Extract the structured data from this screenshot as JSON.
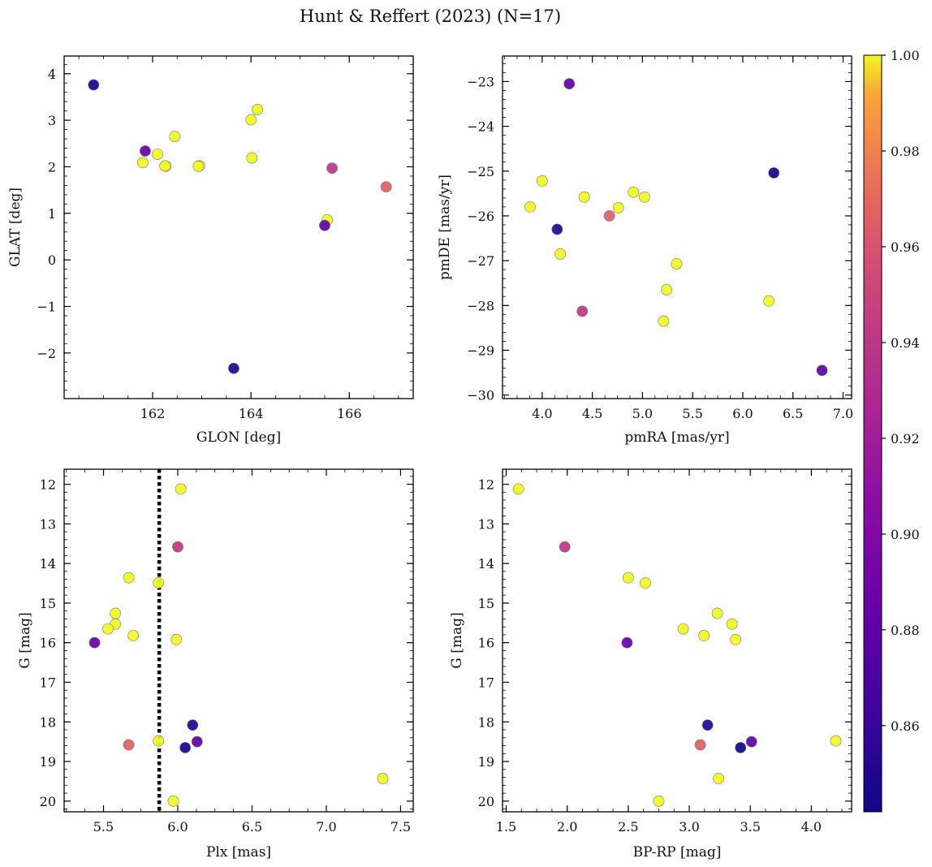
{
  "chart_data": {
    "title": "Hunt & Reffert (2023) (N=17)",
    "colorbar": {
      "colormap": "plasma",
      "range": [
        0.842,
        1.0
      ],
      "ticks": [
        0.86,
        0.88,
        0.9,
        0.92,
        0.94,
        0.96,
        0.98,
        1.0
      ],
      "tick_labels": [
        "0.86",
        "0.88",
        "0.90",
        "0.92",
        "0.94",
        "0.96",
        "0.98",
        "1.00"
      ]
    },
    "members": [
      {
        "glon": 160.8,
        "glat": 3.76,
        "pmra": 6.31,
        "pmde": -25.04,
        "plx": 6.05,
        "g": 18.65,
        "bprp": 3.42,
        "prob": 0.845
      },
      {
        "glon": 163.65,
        "glat": -2.33,
        "pmra": 4.15,
        "pmde": -26.3,
        "plx": 6.1,
        "g": 18.08,
        "bprp": 3.15,
        "prob": 0.85
      },
      {
        "glon": 161.85,
        "glat": 2.34,
        "pmra": 4.27,
        "pmde": -23.05,
        "plx": 5.44,
        "g": 16.0,
        "bprp": 2.49,
        "prob": 0.885
      },
      {
        "glon": 165.5,
        "glat": 0.74,
        "pmra": 6.79,
        "pmde": -29.45,
        "plx": 6.13,
        "g": 18.5,
        "bprp": 3.51,
        "prob": 0.88
      },
      {
        "glon": 165.65,
        "glat": 1.97,
        "pmra": 4.4,
        "pmde": -28.13,
        "plx": 6.0,
        "g": 13.58,
        "bprp": 1.98,
        "prob": 0.94
      },
      {
        "glon": 166.75,
        "glat": 1.57,
        "pmra": 4.67,
        "pmde": -26.0,
        "plx": 5.67,
        "g": 18.58,
        "bprp": 3.09,
        "prob": 0.965
      },
      {
        "glon": 161.8,
        "glat": 2.09,
        "pmra": 3.88,
        "pmde": -25.8,
        "plx": 6.02,
        "g": 12.12,
        "bprp": 1.6,
        "prob": 1.0
      },
      {
        "glon": 162.1,
        "glat": 2.27,
        "pmra": 4.0,
        "pmde": -25.22,
        "plx": 5.87,
        "g": 14.49,
        "bprp": 2.64,
        "prob": 1.0
      },
      {
        "glon": 162.27,
        "glat": 2.01,
        "pmra": 4.18,
        "pmde": -26.85,
        "plx": 5.67,
        "g": 14.36,
        "bprp": 2.5,
        "prob": 1.0
      },
      {
        "glon": 162.25,
        "glat": 2.02,
        "pmra": 4.42,
        "pmde": -25.58,
        "plx": 5.58,
        "g": 15.26,
        "bprp": 3.23,
        "prob": 1.0
      },
      {
        "glon": 162.45,
        "glat": 2.65,
        "pmra": 4.76,
        "pmde": -25.82,
        "plx": 5.58,
        "g": 15.53,
        "bprp": 3.35,
        "prob": 1.0
      },
      {
        "glon": 162.95,
        "glat": 2.02,
        "pmra": 4.91,
        "pmde": -25.47,
        "plx": 5.53,
        "g": 15.65,
        "bprp": 2.95,
        "prob": 1.0
      },
      {
        "glon": 162.93,
        "glat": 2.01,
        "pmra": 5.02,
        "pmde": -25.58,
        "plx": 5.7,
        "g": 15.82,
        "bprp": 3.12,
        "prob": 1.0
      },
      {
        "glon": 164.0,
        "glat": 3.01,
        "pmra": 5.21,
        "pmde": -28.35,
        "plx": 5.99,
        "g": 15.92,
        "bprp": 3.38,
        "prob": 1.0
      },
      {
        "glon": 164.02,
        "glat": 2.19,
        "pmra": 5.24,
        "pmde": -27.65,
        "plx": 5.87,
        "g": 18.48,
        "bprp": 4.2,
        "prob": 1.0
      },
      {
        "glon": 164.13,
        "glat": 3.23,
        "pmra": 5.34,
        "pmde": -27.07,
        "plx": 7.38,
        "g": 19.43,
        "bprp": 3.24,
        "prob": 1.0
      },
      {
        "glon": 165.55,
        "glat": 0.86,
        "pmra": 6.26,
        "pmde": -27.9,
        "plx": 5.97,
        "g": 20.0,
        "bprp": 2.75,
        "prob": 1.0
      }
    ],
    "panels": [
      {
        "id": "glon-glat",
        "type": "scatter",
        "x": "glon",
        "y": "glat",
        "xlabel": "GLON [deg]",
        "ylabel": "GLAT [deg]",
        "xlim": [
          160.2,
          167.3
        ],
        "ylim": [
          -2.98,
          4.38
        ],
        "y_inverted": false,
        "xticks": [
          162,
          164,
          166
        ],
        "xtick_labels": [
          "162",
          "164",
          "166"
        ],
        "yticks": [
          -2,
          -1,
          0,
          1,
          2,
          3,
          4
        ],
        "ytick_labels": [
          "−2",
          "−1",
          "0",
          "1",
          "2",
          "3",
          "4"
        ]
      },
      {
        "id": "pmra-pmde",
        "type": "scatter",
        "x": "pmra",
        "y": "pmde",
        "xlabel": "pmRA [mas/yr]",
        "ylabel": "pmDE [mas/yr]",
        "xlim": [
          3.605,
          7.085
        ],
        "ylim": [
          -30.08,
          -22.43
        ],
        "y_inverted": false,
        "xticks": [
          4.0,
          4.5,
          5.0,
          5.5,
          6.0,
          6.5,
          7.0
        ],
        "xtick_labels": [
          "4.0",
          "4.5",
          "5.0",
          "5.5",
          "6.0",
          "6.5",
          "7.0"
        ],
        "yticks": [
          -30,
          -29,
          -28,
          -27,
          -26,
          -25,
          -24,
          -23
        ],
        "ytick_labels": [
          "−30",
          "−29",
          "−28",
          "−27",
          "−26",
          "−25",
          "−24",
          "−23"
        ]
      },
      {
        "id": "plx-g",
        "type": "scatter",
        "x": "plx",
        "y": "g",
        "xlabel": "Plx [mas]",
        "ylabel": "G [mag]",
        "xlim": [
          5.235,
          7.585
        ],
        "ylim": [
          11.62,
          20.27
        ],
        "y_inverted": true,
        "xticks": [
          5.5,
          6.0,
          6.5,
          7.0,
          7.5
        ],
        "xtick_labels": [
          "5.5",
          "6.0",
          "6.5",
          "7.0",
          "7.5"
        ],
        "yticks": [
          12,
          13,
          14,
          15,
          16,
          17,
          18,
          19,
          20
        ],
        "ytick_labels": [
          "12",
          "13",
          "14",
          "15",
          "16",
          "17",
          "18",
          "19",
          "20"
        ],
        "vline": {
          "x": 5.875,
          "style": "dotted"
        }
      },
      {
        "id": "bprp-g",
        "type": "scatter",
        "x": "bprp",
        "y": "g",
        "xlabel": "BP-RP [mag]",
        "ylabel": "G [mag]",
        "xlim": [
          1.47,
          4.33
        ],
        "ylim": [
          11.62,
          20.27
        ],
        "y_inverted": true,
        "xticks": [
          1.5,
          2.0,
          2.5,
          3.0,
          3.5,
          4.0
        ],
        "xtick_labels": [
          "1.5",
          "2.0",
          "2.5",
          "3.0",
          "3.5",
          "4.0"
        ],
        "yticks": [
          12,
          13,
          14,
          15,
          16,
          17,
          18,
          19,
          20
        ],
        "ytick_labels": [
          "12",
          "13",
          "14",
          "15",
          "16",
          "17",
          "18",
          "19",
          "20"
        ]
      }
    ]
  }
}
